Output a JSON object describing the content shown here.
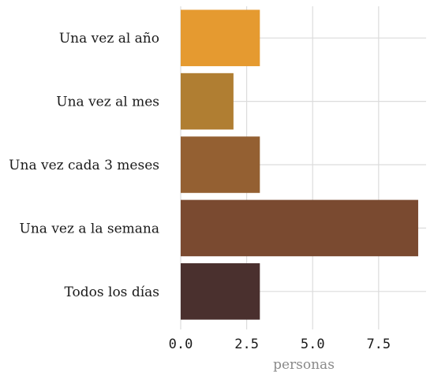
{
  "chart_data": {
    "type": "bar",
    "orientation": "horizontal",
    "categories": [
      "Una vez al año",
      "Una vez al mes",
      "Una vez cada 3 meses",
      "Una vez a la semana",
      "Todos los días"
    ],
    "values": [
      3,
      2,
      3,
      9,
      3
    ],
    "colors": [
      "#e59a30",
      "#b07e32",
      "#946032",
      "#7a4a30",
      "#4a302e"
    ],
    "xlabel": "personas",
    "xlim": [
      0,
      9.3
    ],
    "xticks": [
      0,
      2.5,
      5,
      7.5
    ],
    "xtick_labels": [
      "0.0",
      "2.5",
      "5.0",
      "7.5"
    ],
    "grid": true
  }
}
